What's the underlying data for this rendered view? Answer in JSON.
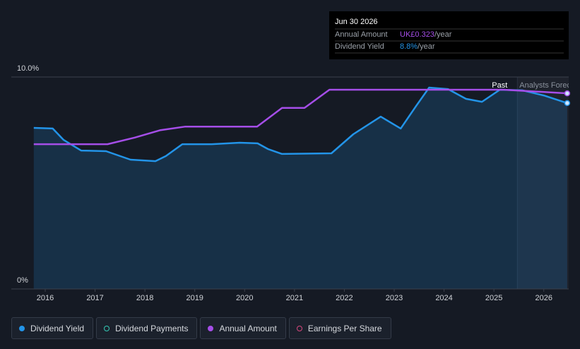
{
  "chart_data": {
    "type": "line",
    "xlim": [
      2015.32,
      2026.5
    ],
    "xticks": [
      2016,
      2017,
      2018,
      2019,
      2020,
      2021,
      2022,
      2023,
      2024,
      2025,
      2026
    ],
    "ylim": [
      0,
      10
    ],
    "yticks": [
      {
        "value": 0,
        "label": "0%"
      },
      {
        "value": 10,
        "label": "10.0%"
      }
    ],
    "y2lim": [
      0,
      0.35
    ],
    "forecast_start": 2025.47,
    "past_label": "Past",
    "forecast_label": "Analysts Forecasts",
    "series": [
      {
        "name": "Dividend Yield",
        "color": "#2394e8",
        "area": true,
        "x": [
          2015.77,
          2016.15,
          2016.37,
          2016.72,
          2017.22,
          2017.71,
          2018.21,
          2018.42,
          2018.75,
          2019.34,
          2019.9,
          2020.26,
          2020.47,
          2020.75,
          2021.74,
          2022.18,
          2022.73,
          2023.13,
          2023.44,
          2023.7,
          2024.08,
          2024.44,
          2024.76,
          2025.12,
          2025.57,
          2026.0,
          2026.47
        ],
        "values": [
          7.6,
          7.57,
          7.03,
          6.53,
          6.5,
          6.1,
          6.03,
          6.27,
          6.83,
          6.83,
          6.9,
          6.87,
          6.6,
          6.37,
          6.4,
          7.3,
          8.13,
          7.57,
          8.63,
          9.5,
          9.43,
          8.97,
          8.83,
          9.4,
          9.37,
          9.13,
          8.77
        ]
      },
      {
        "name": "Annual Amount",
        "color": "#a54ee8",
        "axis": "y2",
        "x": [
          2015.77,
          2017.25,
          2017.8,
          2018.3,
          2018.8,
          2020.25,
          2020.75,
          2021.2,
          2021.7,
          2025.2,
          2026.47
        ],
        "values": [
          0.239,
          0.239,
          0.25,
          0.262,
          0.268,
          0.268,
          0.299,
          0.299,
          0.329,
          0.329,
          0.323
        ]
      }
    ],
    "inactive_series": [
      {
        "name": "Dividend Payments",
        "color": "#34c9b5"
      },
      {
        "name": "Earnings Per Share",
        "color": "#d6477d"
      }
    ],
    "tooltip": {
      "date": "Jun 30 2026",
      "rows": [
        {
          "label": "Annual Amount",
          "value": "UK£0.323",
          "unit": "/year",
          "color": "#a54ee8"
        },
        {
          "label": "Dividend Yield",
          "value": "8.8%",
          "unit": "/year",
          "color": "#2394e8"
        }
      ]
    }
  }
}
